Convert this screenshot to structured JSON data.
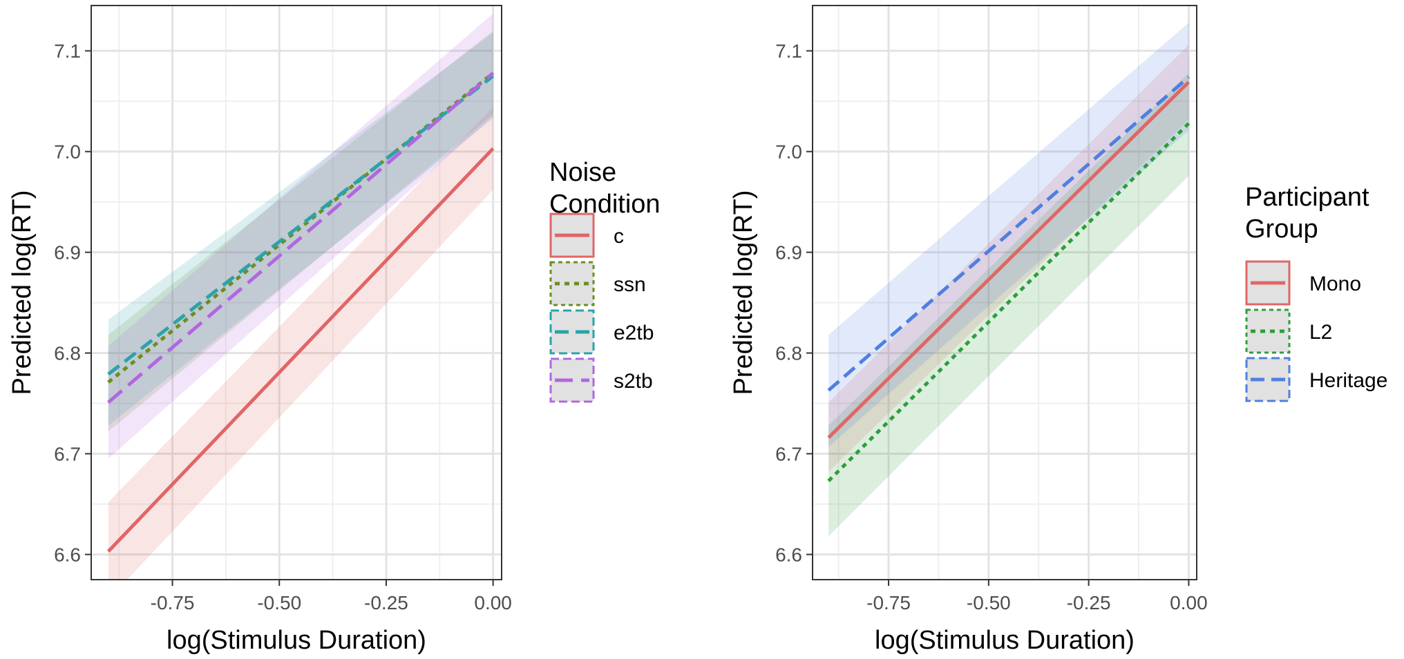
{
  "chart_data": [
    {
      "type": "line",
      "xlabel": "log(Stimulus Duration)",
      "ylabel": "Predicted log(RT)",
      "xlim": [
        -0.94,
        0.02
      ],
      "ylim": [
        6.575,
        7.145
      ],
      "xticks": [
        -0.75,
        -0.5,
        -0.25,
        0.0
      ],
      "xtick_labels": [
        "-0.75",
        "-0.50",
        "-0.25",
        "0.00"
      ],
      "yticks": [
        6.6,
        6.7,
        6.8,
        6.9,
        7.0,
        7.1
      ],
      "ytick_labels": [
        "6.6",
        "6.7",
        "6.8",
        "6.9",
        "7.0",
        "7.1"
      ],
      "grid": true,
      "legend_title": [
        "Noise",
        "Condition"
      ],
      "legend_position": "right",
      "series": [
        {
          "name": "c",
          "color": "#E06666",
          "dash": "solid",
          "x": [
            -0.9,
            0.0
          ],
          "y": [
            6.603,
            7.003
          ],
          "ci_lower": [
            6.555,
            6.962
          ],
          "ci_upper": [
            6.652,
            7.044
          ]
        },
        {
          "name": "ssn",
          "color": "#6B8E23",
          "dash": "dotted",
          "x": [
            -0.9,
            0.0
          ],
          "y": [
            6.771,
            7.078
          ],
          "ci_lower": [
            6.722,
            7.037
          ],
          "ci_upper": [
            6.818,
            7.12
          ]
        },
        {
          "name": "e2tb",
          "color": "#2AA3A9",
          "dash": "dashed",
          "x": [
            -0.9,
            0.0
          ],
          "y": [
            6.779,
            7.075
          ],
          "ci_lower": [
            6.728,
            7.033
          ],
          "ci_upper": [
            6.833,
            7.118
          ]
        },
        {
          "name": "s2tb",
          "color": "#B266E0",
          "dash": "longdash",
          "x": [
            -0.9,
            0.0
          ],
          "y": [
            6.751,
            7.078
          ],
          "ci_lower": [
            6.695,
            7.035
          ],
          "ci_upper": [
            6.807,
            7.137
          ]
        }
      ]
    },
    {
      "type": "line",
      "xlabel": "log(Stimulus Duration)",
      "ylabel": "Predicted log(RT)",
      "xlim": [
        -0.94,
        0.02
      ],
      "ylim": [
        6.575,
        7.145
      ],
      "xticks": [
        -0.75,
        -0.5,
        -0.25,
        0.0
      ],
      "xtick_labels": [
        "-0.75",
        "-0.50",
        "-0.25",
        "0.00"
      ],
      "yticks": [
        6.6,
        6.7,
        6.8,
        6.9,
        7.0,
        7.1
      ],
      "ytick_labels": [
        "6.6",
        "6.7",
        "6.8",
        "6.9",
        "7.0",
        "7.1"
      ],
      "grid": true,
      "legend_title": [
        "Participant",
        "Group"
      ],
      "legend_position": "right",
      "series": [
        {
          "name": "Mono",
          "color": "#E06666",
          "dash": "solid",
          "x": [
            -0.9,
            0.0
          ],
          "y": [
            6.716,
            7.069
          ],
          "ci_lower": [
            6.682,
            7.032
          ],
          "ci_upper": [
            6.751,
            7.106
          ]
        },
        {
          "name": "L2",
          "color": "#2E9E3A",
          "dash": "dotted",
          "x": [
            -0.9,
            0.0
          ],
          "y": [
            6.673,
            7.028
          ],
          "ci_lower": [
            6.618,
            6.976
          ],
          "ci_upper": [
            6.728,
            7.078
          ]
        },
        {
          "name": "Heritage",
          "color": "#4F7FE0",
          "dash": "dashed",
          "x": [
            -0.9,
            0.0
          ],
          "y": [
            6.763,
            7.074
          ],
          "ci_lower": [
            6.707,
            7.021
          ],
          "ci_upper": [
            6.818,
            7.128
          ]
        }
      ]
    }
  ]
}
